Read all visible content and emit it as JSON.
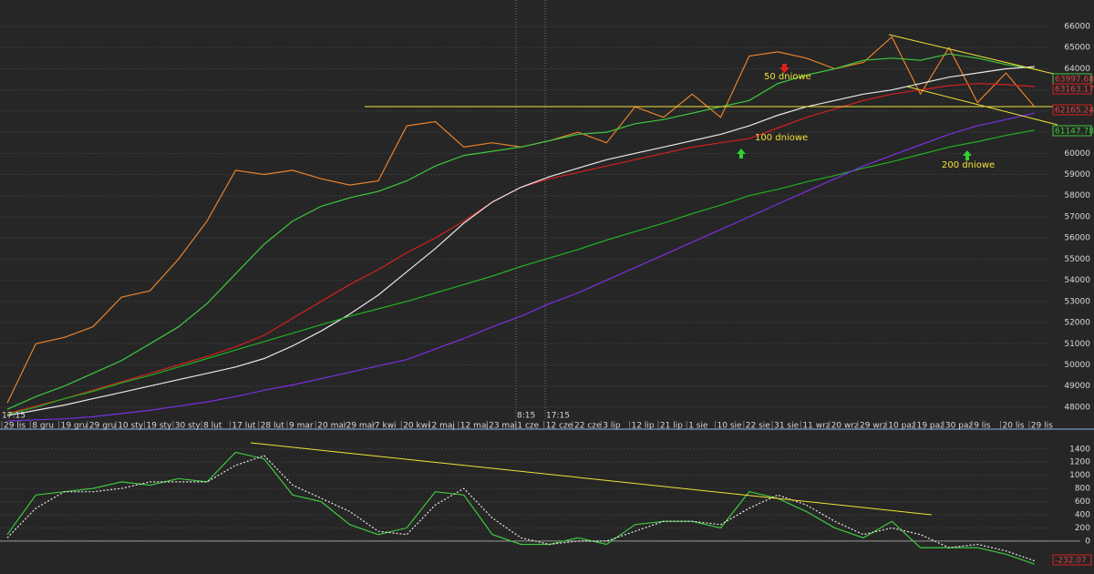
{
  "chart_data": [
    {
      "type": "line",
      "categories": [
        "29 lis",
        "8 gru",
        "19 gru",
        "29 gru",
        "10 sty",
        "19 sty",
        "30 sty",
        "8 lut",
        "17 lut",
        "28 lut",
        "9 mar",
        "20 mar",
        "29 mar",
        "7 kwi",
        "20 kwi",
        "2 maj",
        "12 maj",
        "23 maj",
        "1 cze",
        "12 cze",
        "22 cze",
        "3 lip",
        "12 lip",
        "21 lip",
        "1 sie",
        "10 sie",
        "22 sie",
        "31 sie",
        "11 wrz",
        "20 wrz",
        "29 wrz",
        "10 paź",
        "19 paź",
        "30 paź",
        "9 lis",
        "20 lis",
        "29 lis"
      ],
      "ylim": [
        47350,
        67250
      ],
      "yticks": [
        48000,
        49000,
        50000,
        51000,
        52000,
        53000,
        54000,
        55000,
        56000,
        57000,
        58000,
        59000,
        60000,
        61000,
        62000,
        63000,
        64000,
        65000,
        66000
      ],
      "grid": true,
      "series": [
        {
          "color": "#e8822a",
          "values": [
            48200,
            51000,
            51300,
            51800,
            53200,
            53500,
            55000,
            56800,
            59200,
            59000,
            59200,
            58800,
            58500,
            58700,
            61300,
            61500,
            60300,
            60500,
            60300,
            60600,
            61000,
            60500,
            62200,
            61700,
            62800,
            61700,
            64600,
            64800,
            64500,
            64000,
            64300,
            65500,
            62800,
            65000,
            62400,
            63800,
            62200
          ]
        },
        {
          "color": "#3ec83e",
          "values": [
            47900,
            48500,
            49000,
            49600,
            50200,
            51000,
            51800,
            52900,
            54300,
            55700,
            56800,
            57500,
            57900,
            58200,
            58700,
            59400,
            59900,
            60100,
            60300,
            60600,
            60900,
            61000,
            61400,
            61600,
            61900,
            62200,
            62500,
            63300,
            63700,
            64000,
            64400,
            64500,
            64400,
            64700,
            64500,
            64200,
            64000
          ]
        },
        {
          "color": "#d42020",
          "values": [
            47700,
            48050,
            48400,
            48800,
            49200,
            49600,
            50000,
            50400,
            50850,
            51400,
            52200,
            53000,
            53800,
            54500,
            55300,
            56000,
            56800,
            57700,
            58400,
            58800,
            59100,
            59400,
            59700,
            60000,
            60300,
            60500,
            60700,
            61200,
            61700,
            62100,
            62500,
            62800,
            63000,
            63200,
            63300,
            63250,
            63160
          ]
        },
        {
          "color": "#e8e8e8",
          "values": [
            47600,
            47850,
            48100,
            48400,
            48700,
            49000,
            49300,
            49600,
            49900,
            50300,
            50900,
            51600,
            52400,
            53300,
            54400,
            55500,
            56700,
            57700,
            58400,
            58900,
            59300,
            59700,
            60000,
            60300,
            60600,
            60900,
            61300,
            61800,
            62200,
            62500,
            62800,
            63000,
            63300,
            63600,
            63800,
            64000,
            64100
          ]
        },
        {
          "color": "#22b022",
          "values": [
            47650,
            48000,
            48400,
            48750,
            49150,
            49500,
            49900,
            50300,
            50700,
            51100,
            51500,
            51900,
            52300,
            52650,
            53000,
            53400,
            53800,
            54200,
            54650,
            55050,
            55450,
            55900,
            56300,
            56700,
            57150,
            57550,
            58000,
            58300,
            58650,
            58950,
            59300,
            59600,
            59950,
            60300,
            60550,
            60850,
            61100
          ]
        },
        {
          "color": "#7a30e0",
          "values": [
            47350,
            47400,
            47450,
            47550,
            47700,
            47850,
            48050,
            48250,
            48500,
            48800,
            49050,
            49350,
            49650,
            49950,
            50250,
            50750,
            51250,
            51800,
            52300,
            52900,
            53400,
            54000,
            54600,
            55200,
            55800,
            56400,
            57000,
            57600,
            58200,
            58800,
            59400,
            59900,
            60400,
            60900,
            61300,
            61600,
            61900
          ]
        }
      ],
      "annotations": [
        "50 dniowe",
        "100 dniowe",
        "200 dniowe",
        "63997.68",
        "63163.17",
        "62165.24",
        "61147.78",
        "8:15",
        "17:15",
        "17:15"
      ]
    },
    {
      "type": "line",
      "ylim": [
        -500,
        1660
      ],
      "yticks": [
        0,
        200,
        400,
        600,
        800,
        1000,
        1200,
        1400
      ],
      "grid": true,
      "series": [
        {
          "color": "#3ec83e",
          "values": [
            100,
            700,
            750,
            800,
            900,
            850,
            950,
            900,
            1350,
            1250,
            700,
            600,
            250,
            100,
            200,
            750,
            700,
            100,
            -50,
            -50,
            50,
            -50,
            250,
            300,
            300,
            200,
            750,
            650,
            450,
            200,
            50,
            300,
            -100,
            -100,
            -100,
            -200,
            -350
          ]
        },
        {
          "color": "#e8e8e8",
          "dashed": true,
          "values": [
            50,
            500,
            750,
            750,
            800,
            900,
            900,
            900,
            1150,
            1300,
            850,
            650,
            450,
            150,
            100,
            550,
            800,
            350,
            50,
            -50,
            0,
            0,
            150,
            300,
            300,
            250,
            500,
            700,
            550,
            300,
            100,
            200,
            100,
            -100,
            -50,
            -150,
            -300
          ]
        }
      ],
      "annotations": [
        "-232.07"
      ]
    }
  ]
}
